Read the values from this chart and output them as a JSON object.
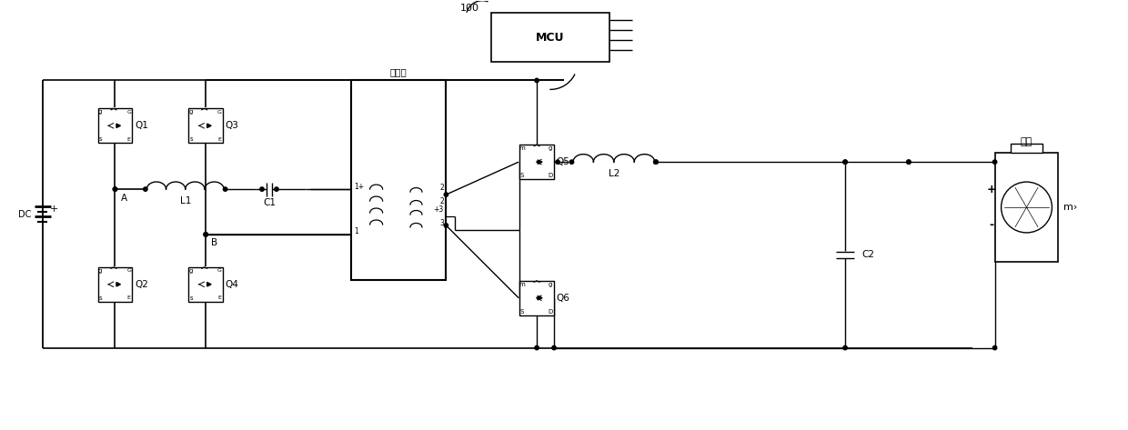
{
  "bg_color": "#ffffff",
  "line_color": "#000000",
  "figsize": [
    12.4,
    4.73
  ],
  "dpi": 100,
  "mosfet_q1_q4_labels": [
    "Q1",
    "Q2",
    "Q3",
    "Q4"
  ],
  "mosfet_q5_q6_labels": [
    "Q5",
    "Q6"
  ],
  "component_labels": [
    "L1",
    "C1",
    "L2",
    "C2"
  ],
  "dc_label": "DC",
  "node_a": "A",
  "node_b": "B",
  "mcu_label": "MCU",
  "mcu_ref": "100",
  "transformer_label": "变压器",
  "battery_label": "电池",
  "motor_label": "m›",
  "trans_pin_labels": [
    "1+",
    "2",
    "2",
    "+3",
    "1",
    "3"
  ],
  "xlim": [
    0,
    124
  ],
  "ylim": [
    0,
    47.3
  ]
}
